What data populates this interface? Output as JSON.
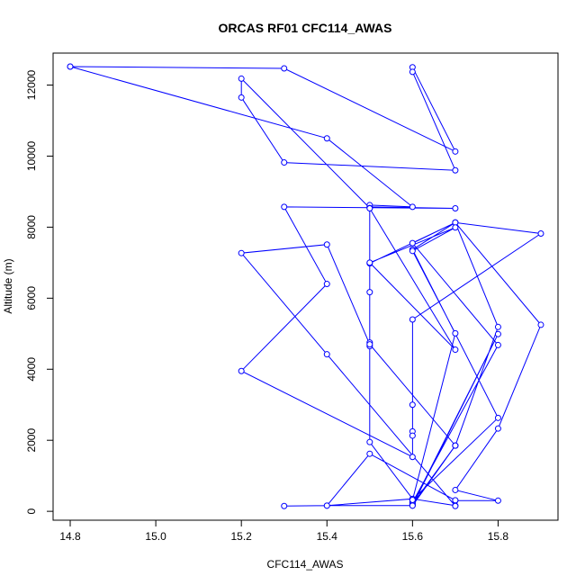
{
  "chart_data": {
    "type": "line",
    "title": "ORCAS RF01 CFC114_AWAS",
    "xlabel": "CFC114_AWAS",
    "ylabel": "Altitude (m)",
    "xlim": [
      14.76,
      15.94
    ],
    "ylim": [
      -250,
      12900
    ],
    "xticks": [
      14.8,
      15.0,
      15.2,
      15.4,
      15.6,
      15.8
    ],
    "xtick_labels": [
      "14.8",
      "15.0",
      "15.2",
      "15.4",
      "15.6",
      "15.8"
    ],
    "yticks": [
      0,
      2000,
      4000,
      6000,
      8000,
      10000,
      12000
    ],
    "ytick_labels": [
      "0",
      "2000",
      "4000",
      "6000",
      "8000",
      "10000",
      "12000"
    ],
    "color": "#0000ff",
    "marker": "open-circle",
    "points": [
      {
        "x": 15.3,
        "y": 150
      },
      {
        "x": 15.4,
        "y": 160
      },
      {
        "x": 15.6,
        "y": 160
      },
      {
        "x": 15.6,
        "y": 200
      },
      {
        "x": 15.6,
        "y": 250
      },
      {
        "x": 15.6,
        "y": 300
      },
      {
        "x": 15.6,
        "y": 350
      },
      {
        "x": 15.7,
        "y": 160
      },
      {
        "x": 15.7,
        "y": 300
      },
      {
        "x": 15.8,
        "y": 300
      },
      {
        "x": 15.7,
        "y": 600
      },
      {
        "x": 15.8,
        "y": 2330
      },
      {
        "x": 15.9,
        "y": 5250
      },
      {
        "x": 15.7,
        "y": 8130
      },
      {
        "x": 15.6,
        "y": 7550
      },
      {
        "x": 15.8,
        "y": 4680
      },
      {
        "x": 15.6,
        "y": 250
      },
      {
        "x": 15.6,
        "y": 330
      },
      {
        "x": 15.8,
        "y": 2630
      },
      {
        "x": 15.6,
        "y": 7370
      },
      {
        "x": 15.7,
        "y": 8130
      },
      {
        "x": 15.9,
        "y": 7820
      },
      {
        "x": 15.6,
        "y": 5400
      },
      {
        "x": 15.6,
        "y": 3000
      },
      {
        "x": 15.6,
        "y": 2250
      },
      {
        "x": 15.6,
        "y": 2130
      },
      {
        "x": 15.6,
        "y": 1530
      },
      {
        "x": 15.2,
        "y": 3950
      },
      {
        "x": 15.4,
        "y": 6400
      },
      {
        "x": 15.3,
        "y": 8570
      },
      {
        "x": 15.7,
        "y": 8530
      },
      {
        "x": 15.5,
        "y": 8570
      },
      {
        "x": 15.5,
        "y": 8620
      },
      {
        "x": 15.6,
        "y": 8570
      },
      {
        "x": 15.4,
        "y": 10500
      },
      {
        "x": 14.8,
        "y": 12520
      },
      {
        "x": 14.8,
        "y": 12520
      },
      {
        "x": 15.3,
        "y": 12470
      },
      {
        "x": 15.7,
        "y": 10130
      },
      {
        "x": 15.6,
        "y": 12500
      },
      {
        "x": 15.6,
        "y": 12370
      },
      {
        "x": 15.7,
        "y": 9600
      },
      {
        "x": 15.3,
        "y": 9820
      },
      {
        "x": 15.2,
        "y": 11650
      },
      {
        "x": 15.2,
        "y": 12180
      },
      {
        "x": 15.5,
        "y": 8540
      },
      {
        "x": 15.5,
        "y": 6170
      },
      {
        "x": 15.5,
        "y": 4750
      },
      {
        "x": 15.5,
        "y": 4650
      },
      {
        "x": 15.5,
        "y": 6980
      },
      {
        "x": 15.7,
        "y": 8130
      },
      {
        "x": 15.8,
        "y": 5190
      },
      {
        "x": 15.7,
        "y": 1850
      },
      {
        "x": 15.6,
        "y": 200
      },
      {
        "x": 15.8,
        "y": 4990
      },
      {
        "x": 15.6,
        "y": 160
      },
      {
        "x": 15.7,
        "y": 1850
      },
      {
        "x": 15.7,
        "y": 1850
      },
      {
        "x": 15.5,
        "y": 4700
      },
      {
        "x": 15.4,
        "y": 7510
      },
      {
        "x": 15.2,
        "y": 7270
      },
      {
        "x": 15.4,
        "y": 4420
      },
      {
        "x": 15.7,
        "y": 150
      },
      {
        "x": 15.7,
        "y": 310
      },
      {
        "x": 15.5,
        "y": 1620
      },
      {
        "x": 15.4,
        "y": 160
      },
      {
        "x": 15.6,
        "y": 350
      },
      {
        "x": 15.5,
        "y": 1950
      },
      {
        "x": 15.5,
        "y": 8530
      },
      {
        "x": 15.7,
        "y": 4550
      },
      {
        "x": 15.5,
        "y": 7000
      },
      {
        "x": 15.7,
        "y": 7990
      },
      {
        "x": 15.6,
        "y": 7330
      },
      {
        "x": 15.7,
        "y": 5010
      },
      {
        "x": 15.6,
        "y": 320
      }
    ]
  }
}
